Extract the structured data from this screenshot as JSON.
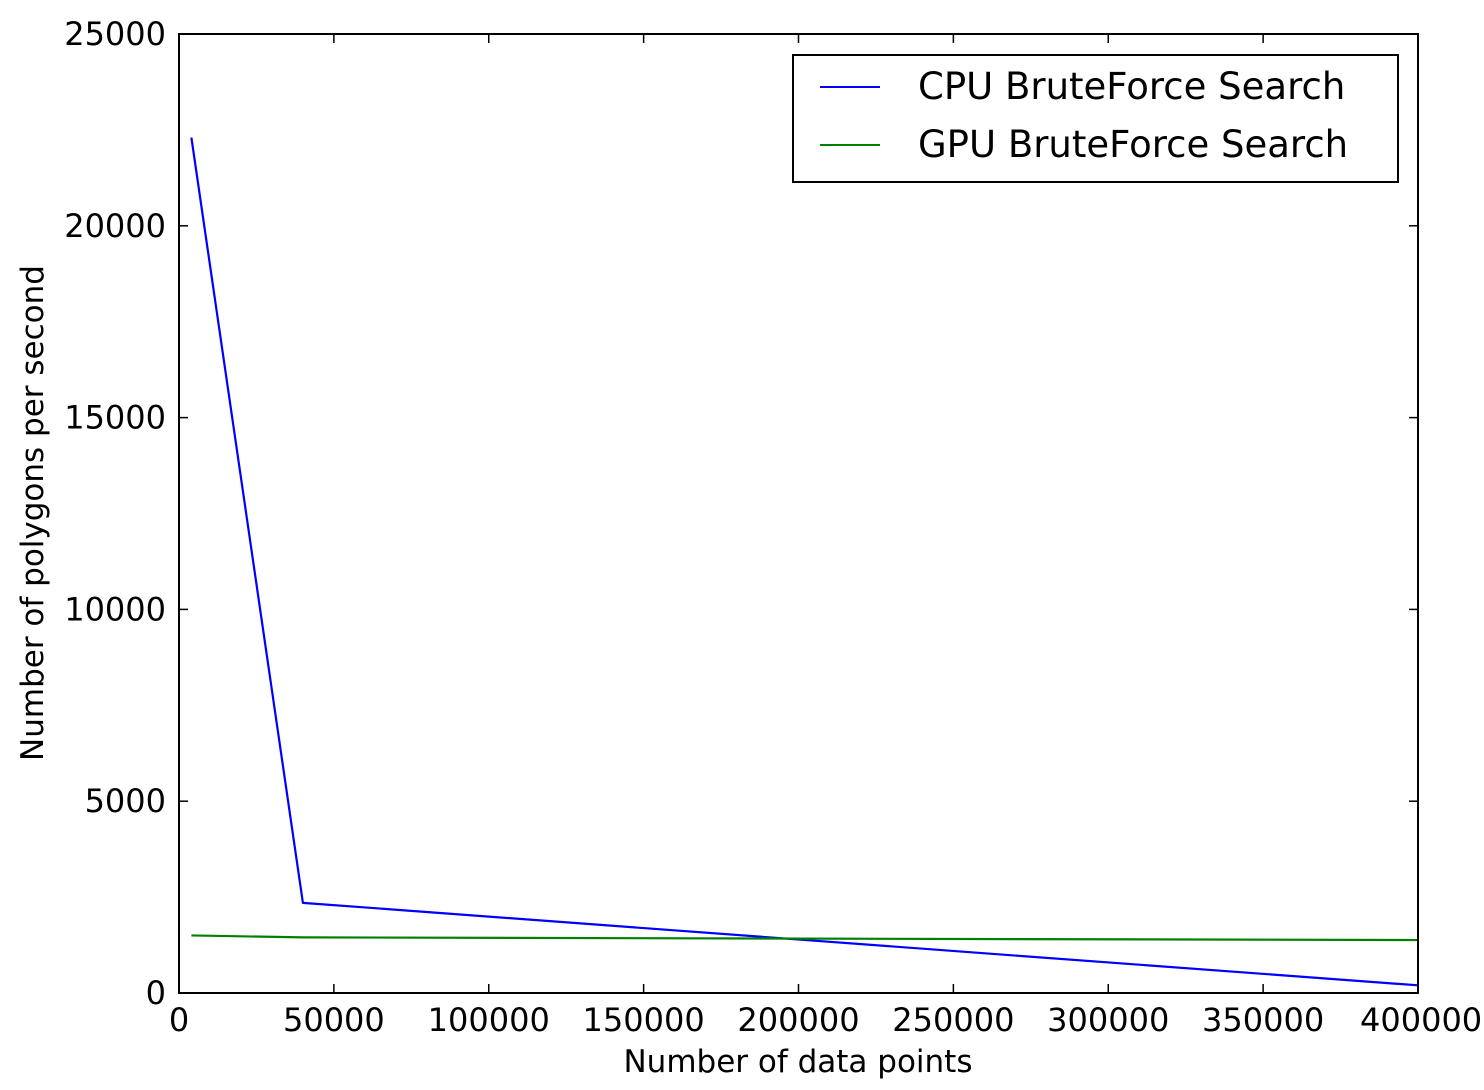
{
  "chart_data": {
    "type": "line",
    "title": "",
    "xlabel": "Number of data points",
    "ylabel": "Number of polygons per second",
    "xlim": [
      0,
      400000
    ],
    "ylim": [
      0,
      25000
    ],
    "xticks": [
      0,
      50000,
      100000,
      150000,
      200000,
      250000,
      300000,
      350000,
      400000
    ],
    "xtick_labels": [
      "0",
      "50000",
      "100000",
      "150000",
      "200000",
      "250000",
      "300000",
      "350000",
      "400000"
    ],
    "yticks": [
      0,
      5000,
      10000,
      15000,
      20000,
      25000
    ],
    "ytick_labels": [
      "0",
      "5000",
      "10000",
      "15000",
      "20000",
      "25000"
    ],
    "grid": false,
    "legend_position": "top-right",
    "series": [
      {
        "name": "CPU BruteForce Search",
        "color": "#0000ff",
        "x": [
          4000,
          40000,
          400000
        ],
        "y": [
          22300,
          2350,
          200
        ]
      },
      {
        "name": "GPU BruteForce Search",
        "color": "#008000",
        "x": [
          4000,
          40000,
          400000
        ],
        "y": [
          1500,
          1450,
          1380
        ]
      }
    ]
  }
}
